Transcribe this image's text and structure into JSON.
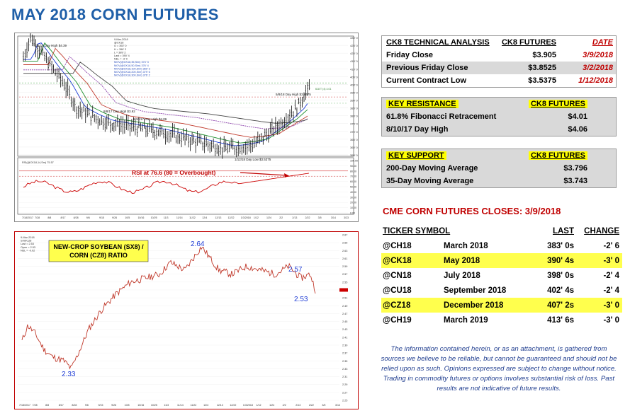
{
  "title": "MAY 2018 CORN FUTURES",
  "corn_chart": {
    "header_legend": [
      "9-Mar-2018",
      "@CK18",
      "O = 392' 0",
      "H = 396' 2",
      "L = 389' 2",
      "Last = 390' 4",
      "NEL = -3' 0",
      "MOV(@CK18,35,Sim) 374' 3",
      "MOV(@CK18,50,Sim) 376' 4",
      "MOV(@CK18,100,Sim) 369' 3",
      "MOV(@CK18,200,Sim) 379' 6",
      "MOV(@CK18,300,Sim) 376' 2"
    ],
    "annotations": {
      "high_711": "7/11/17 Day High $4.39",
      "high_810": "8/10/17 Day High $4.06",
      "high_817": "8/8/17 Day High $3.92",
      "high_511": "5/8/18 Day High $3.8575",
      "low_112": "1/12/18 Day Low $3.5375",
      "rsi_note": "RSI at 76.6 (80 = Overbought)",
      "rsi_legend": "RSI(@CK18,14,Sm) 75.57",
      "fib_label": "618 T (4) 4.01"
    },
    "price_axis": [
      "430' 0",
      "425' 0",
      "420' 0",
      "415' 0",
      "410' 0",
      "405' 0",
      "400' 0",
      "395' 0",
      "390' 0",
      "385' 0",
      "380' 0",
      "375' 0",
      "370' 0",
      "365' 0",
      "360' 0",
      "355' 0"
    ],
    "rsi_axis": [
      "100.00",
      "90.00",
      "80.00",
      "70.00",
      "60.00",
      "50.00",
      "40.00",
      "30.00",
      "20.00",
      "10.00",
      "0.00"
    ],
    "date_axis": [
      "7/18/2017",
      "7/28",
      "8/8",
      "8/17",
      "8/28",
      "9/6",
      "9/15",
      "9/26",
      "10/5",
      "10/16",
      "10/25",
      "11/3",
      "11/14",
      "11/22",
      "12/4",
      "12/13",
      "12/22",
      "1/3/2018",
      "1/12",
      "1/24",
      "2/2",
      "2/13",
      "2/22",
      "3/5",
      "3/14",
      "3/23"
    ]
  },
  "ratio_chart": {
    "label_line1": "NEW-CROP SOYBEAN (SX8) /",
    "label_line2": "CORN (CZ8) RATIO",
    "legend": [
      "9-Mar-2018",
      "SX8/CZ8",
      "Last = 2.53",
      "Open = 2.53",
      "NEL = -0.02"
    ],
    "points": {
      "low": "2.33",
      "high": "2.64",
      "recent": "2.57",
      "last": "2.53"
    },
    "y_axis": [
      "2.67",
      "2.65",
      "2.63",
      "2.61",
      "2.59",
      "2.57",
      "2.55",
      "2.53",
      "2.51",
      "2.49",
      "2.47",
      "2.45",
      "2.43",
      "2.41",
      "2.39",
      "2.37",
      "2.35",
      "2.33",
      "2.31",
      "2.29",
      "2.27",
      "2.25"
    ],
    "date_axis": [
      "7/18/2017",
      "7/28",
      "8/8",
      "8/17",
      "8/28",
      "9/6",
      "9/15",
      "9/26",
      "10/5",
      "10/16",
      "10/25",
      "11/3",
      "11/14",
      "11/22",
      "12/4",
      "12/13",
      "12/22",
      "1/3/2018",
      "1/12",
      "1/24",
      "2/2",
      "2/13",
      "2/22",
      "3/5",
      "3/14"
    ]
  },
  "technical": {
    "headers": {
      "name": "CK8 TECHNICAL ANALYSIS",
      "value": "CK8 FUTURES",
      "date": "DATE"
    },
    "rows": [
      {
        "name": "Friday Close",
        "value": "$3.905",
        "date": "3/9/2018"
      },
      {
        "name": "Previous Friday Close",
        "value": "$3.8525",
        "date": "3/2/2018"
      },
      {
        "name": "Current Contract Low",
        "value": "$3.5375",
        "date": "1/12/2018"
      }
    ]
  },
  "resistance": {
    "headers": {
      "name": "KEY RESISTANCE",
      "value": "CK8 FUTURES"
    },
    "rows": [
      {
        "name": "61.8% Fibonacci Retracement",
        "value": "$4.01"
      },
      {
        "name": "8/10/17 Day High",
        "value": "$4.06"
      }
    ]
  },
  "support": {
    "headers": {
      "name": "KEY SUPPORT",
      "value": "CK8 FUTURES"
    },
    "rows": [
      {
        "name": "200-Day Moving Average",
        "value": "$3.796"
      },
      {
        "name": "35-Day Moving Average",
        "value": "$3.743"
      }
    ]
  },
  "closes": {
    "title": "CME CORN FUTURES CLOSES:  3/9/2018",
    "headers": {
      "ticker": "TICKER SYMBOL",
      "month": "",
      "last": "LAST",
      "change": "CHANGE"
    },
    "rows": [
      {
        "ticker": "@CH18",
        "month": "March 2018",
        "last": "383' 0s",
        "change": "-2' 6"
      },
      {
        "ticker": "@CK18",
        "month": "May 2018",
        "last": "390' 4s",
        "change": "-3' 0"
      },
      {
        "ticker": "@CN18",
        "month": "July 2018",
        "last": "398' 0s",
        "change": "-2' 4"
      },
      {
        "ticker": "@CU18",
        "month": "September 2018",
        "last": "402' 4s",
        "change": "-2' 4"
      },
      {
        "ticker": "@CZ18",
        "month": "December 2018",
        "last": "407' 2s",
        "change": "-3' 0"
      },
      {
        "ticker": "@CH19",
        "month": "March 2019",
        "last": "413' 6s",
        "change": "-3' 0"
      }
    ]
  },
  "disclaimer": "The information contained herein, or as an attachment, is gathered from sources we believe to be reliable, but cannot be guaranteed and should not be relied upon as such. Opinions expressed are subject to change without notice. Trading in commodity futures or options involves substantial risk of loss. Past results are not indicative of future results.",
  "colors": {
    "title": "#1f5fa8",
    "accent_red": "#c00000",
    "highlight": "#ffff4d"
  }
}
